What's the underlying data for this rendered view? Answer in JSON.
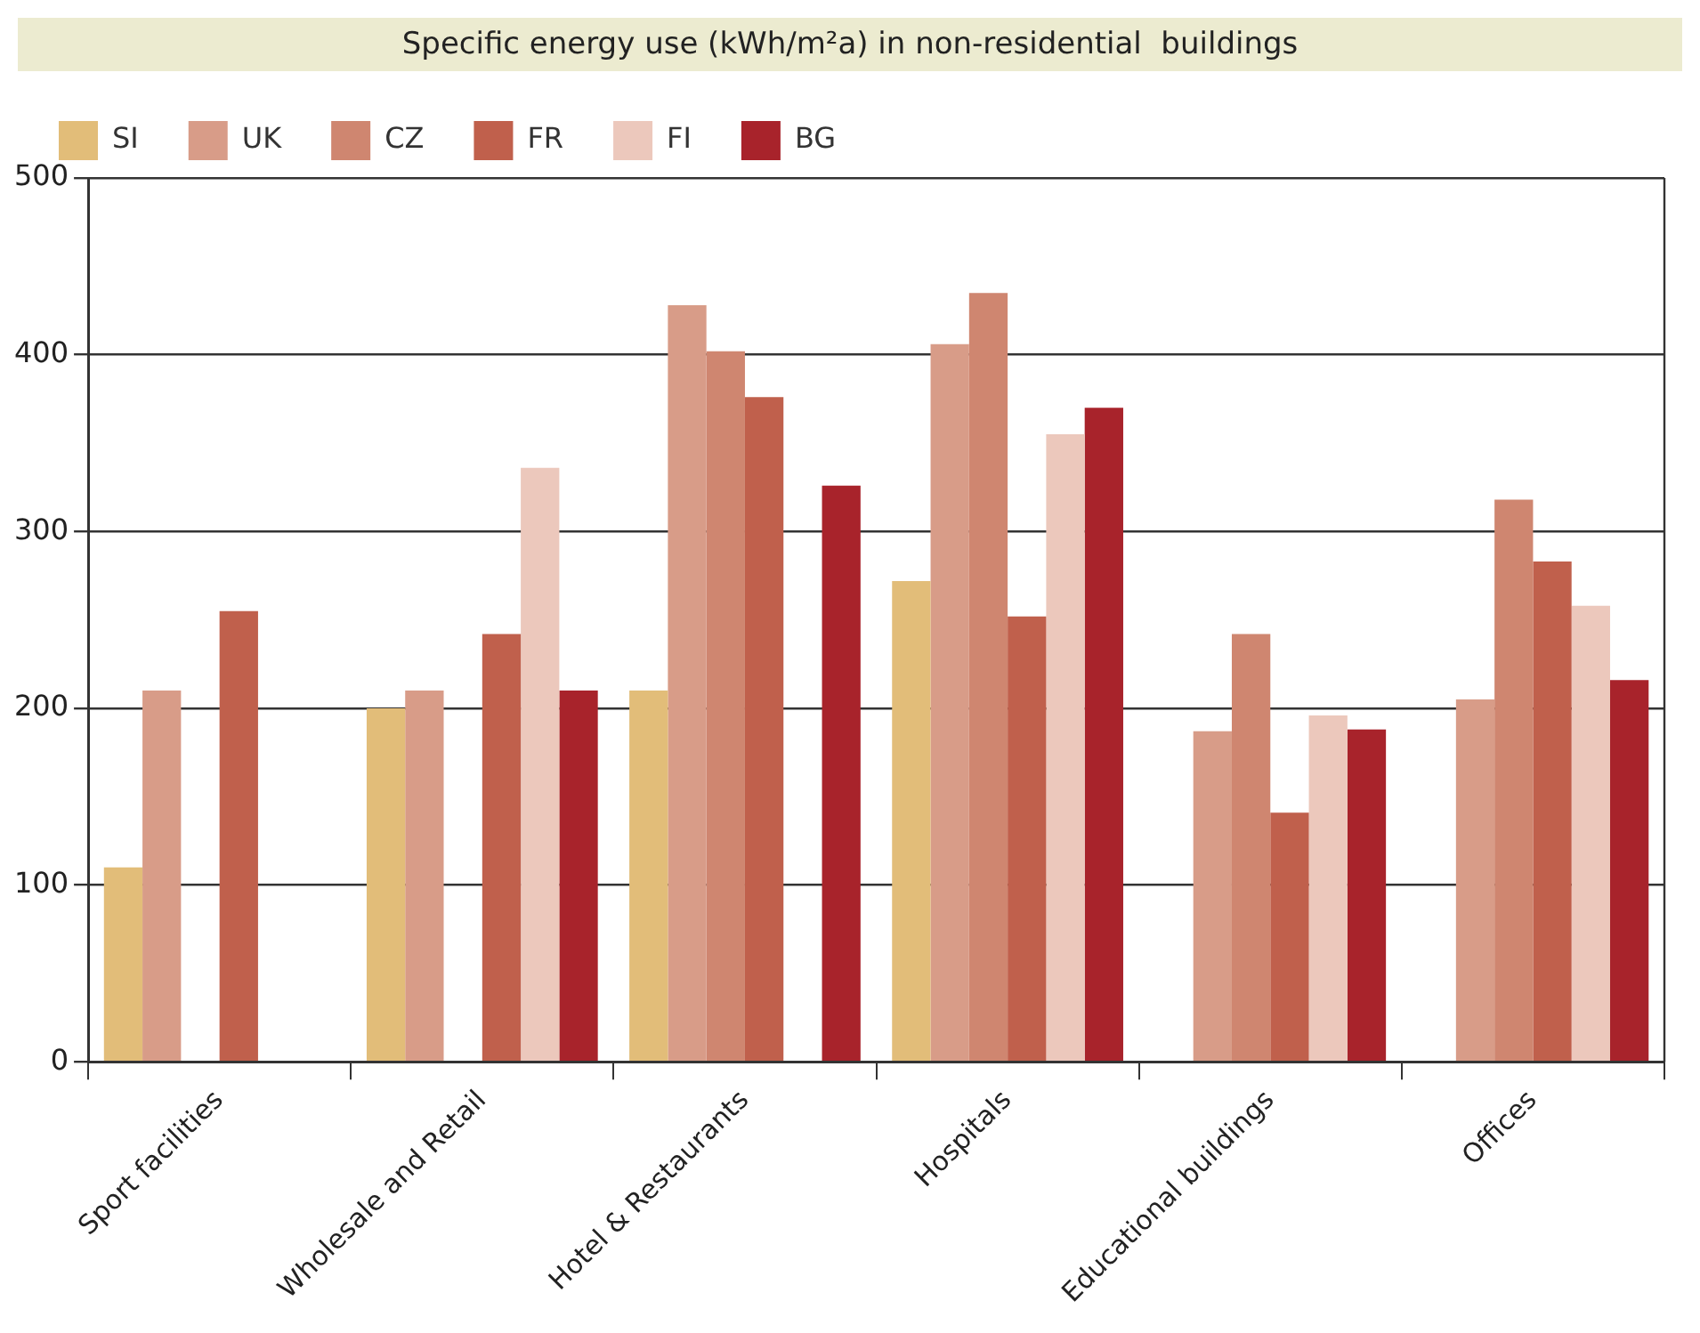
{
  "chart_data": {
    "type": "bar",
    "title": "Specific energy use (kWh/m²a) in non-residential  buildings",
    "categories": [
      "Sport facilities",
      "Wholesale and Retail",
      "Hotel & Restaurants",
      "Hospitals",
      "Educational buildings",
      "Offices"
    ],
    "series": [
      {
        "name": "SI",
        "color": "#e2bd79",
        "values": [
          110,
          200,
          210,
          272,
          null,
          null
        ]
      },
      {
        "name": "UK",
        "color": "#d89c88",
        "values": [
          210,
          210,
          428,
          406,
          187,
          205
        ]
      },
      {
        "name": "CZ",
        "color": "#cf8670",
        "values": [
          null,
          null,
          402,
          435,
          242,
          318
        ]
      },
      {
        "name": "FR",
        "color": "#c0604c",
        "values": [
          255,
          242,
          376,
          252,
          141,
          283
        ]
      },
      {
        "name": "FI",
        "color": "#ecc8bc",
        "values": [
          null,
          336,
          null,
          355,
          196,
          258
        ]
      },
      {
        "name": "BG",
        "color": "#a8232b",
        "values": [
          null,
          210,
          326,
          370,
          188,
          216
        ]
      }
    ],
    "ylim": [
      0,
      500
    ],
    "yticks": [
      0,
      100,
      200,
      300,
      400,
      500
    ],
    "grid": "y",
    "legend": "top left"
  }
}
